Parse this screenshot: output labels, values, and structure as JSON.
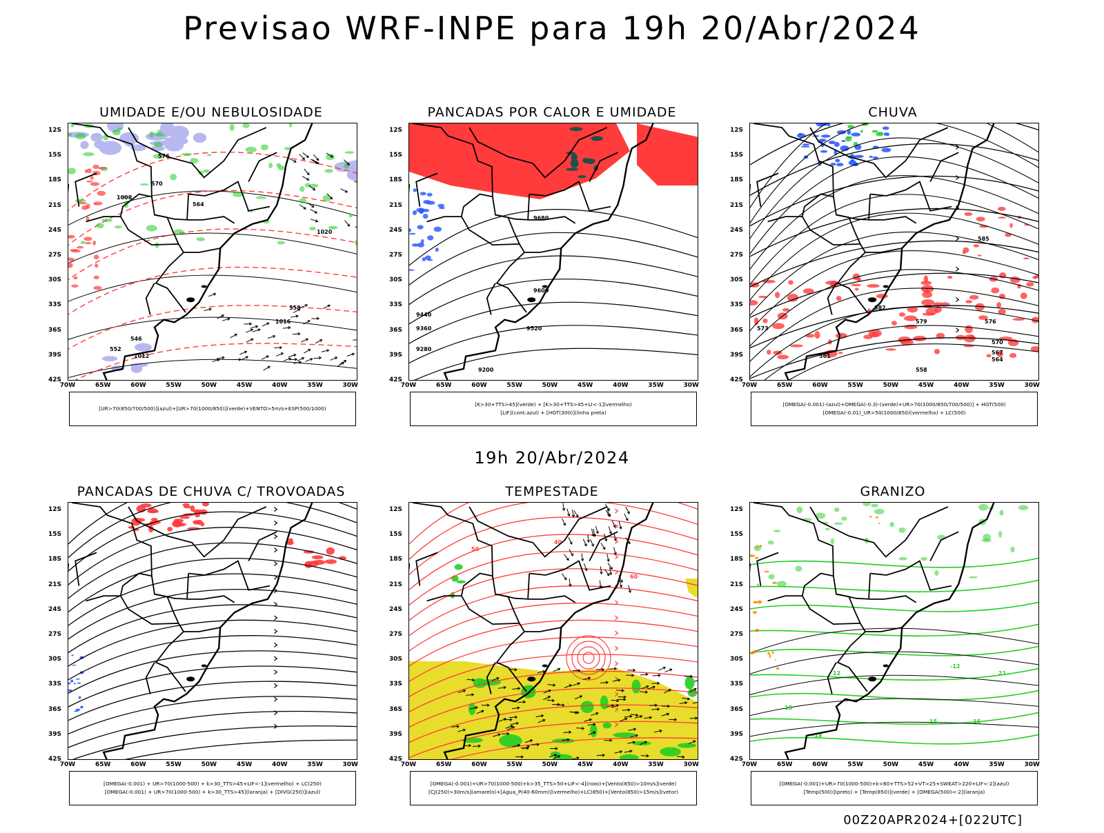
{
  "header": {
    "title": "Previsao WRF-INPE  para 19h 20/Abr/2024",
    "mid_title": "19h 20/Abr/2024",
    "footer": "00Z20APR2024+[022UTC]"
  },
  "axes": {
    "lat_labels": [
      "12S",
      "15S",
      "18S",
      "21S",
      "24S",
      "27S",
      "30S",
      "33S",
      "36S",
      "39S",
      "42S"
    ],
    "lon_labels": [
      "70W",
      "65W",
      "60W",
      "55W",
      "50W",
      "45W",
      "40W",
      "35W",
      "30W"
    ]
  },
  "colors": {
    "red": "#ff3b3b",
    "green": "#22cc22",
    "blue": "#2255ff",
    "lavender": "#b8b8f0",
    "yellow": "#e8dc2c",
    "orange": "#ff8c00",
    "darkteal": "#1f4f4a"
  },
  "panels": [
    {
      "id": "umidade",
      "title": "UMIDADE E/OU NEBULOSIDADE",
      "legend": [
        "[UR>70(850/700/500)](azul)+[UR>70(1000/850)](verde)+VENTO>5m/s+ESP(500/1000)"
      ],
      "contour_labels": [
        "1012",
        "1016",
        "1008",
        "1020",
        "576",
        "570",
        "564",
        "558",
        "552",
        "546"
      ]
    },
    {
      "id": "pancadas-calor",
      "title": "PANCADAS POR CALOR E UMIDADE",
      "legend": [
        "[K>30+TTS>45](verde) + [K>30+TTS>45+LI<-1](vermelho)",
        "[LIF](cont.azul) + [HGT(300)](linha preta)"
      ],
      "contour_labels": [
        "9680",
        "9600",
        "9520",
        "9440",
        "9360",
        "9280",
        "9200"
      ]
    },
    {
      "id": "chuva",
      "title": "CHUVA",
      "legend": [
        "[OMEGA(-0.001)-(azul)+OMEGA(-0.3)-(verde)+UR>70(1000/850/700/500)] + HGT(500)",
        "[OMEGA(-0.01)_UR>50(1000/850)(vermelho) + LC(500)"
      ],
      "contour_labels": [
        "585",
        "582",
        "579",
        "576",
        "573",
        "570",
        "567",
        "564",
        "561",
        "558"
      ]
    },
    {
      "id": "pancadas-trovoadas",
      "title": "PANCADAS DE CHUVA C/ TROVOADAS",
      "legend": [
        "[OMEGA(-0.001) + UR>70(1000-500) + k>30_TTS>45+LIF<-1](vermelho) + LC(250)",
        "[OMEGA(-0.001) + UR>70(1000-500) + k>30_TTS>45](laranja) + [DIVG(250)](azul)"
      ],
      "contour_labels": []
    },
    {
      "id": "tempestade",
      "title": "TEMPESTADE",
      "legend": [
        "[OMEGA(-0.001)+UR>70(1000-500)+k>35_TTS>50+LIF<-4](roxo)+[Vento(850)>10m/s](verde)",
        "[CJ(250)>30m/s](amarelo)+[Agua_P(40-60mm)](vermelho)+LC(850)+[Vento(850)>15m/s](vetor)"
      ],
      "contour_labels": [
        "50",
        "40",
        "60"
      ]
    },
    {
      "id": "granizo",
      "title": "GRANIZO",
      "legend": [
        "[OMEGA(-0.001)+UR>70(1000-500)+k<60+TTS>52+VT>25+SWEAT>220+LIF<-2](azul)",
        "[Temp(500)](preto) + [Temp(850)](verde) + [OMEGA(500)<-2](laranja)"
      ],
      "contour_labels": [
        "12",
        "15",
        "18",
        "21",
        "-12",
        "-15",
        "-18"
      ]
    }
  ]
}
